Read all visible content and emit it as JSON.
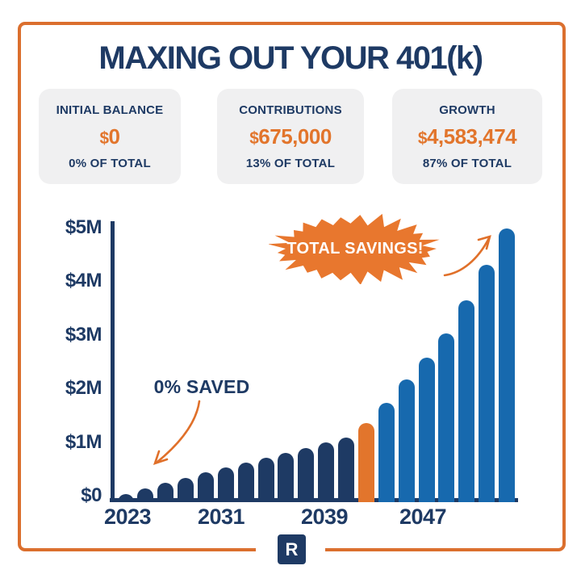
{
  "header": {
    "title": "MAXING OUT YOUR 401(k)"
  },
  "stats": [
    {
      "label": "INITIAL BALANCE",
      "amount": "$0",
      "share": "0% OF TOTAL"
    },
    {
      "label": "CONTRIBUTIONS",
      "amount": "$675,000",
      "share": "13% OF TOTAL"
    },
    {
      "label": "GROWTH",
      "amount": "$4,583,474",
      "share": "87% OF TOTAL"
    }
  ],
  "annotations": {
    "burst": "TOTAL SAVINGS!",
    "zero_saved": "0% SAVED"
  },
  "footer": {
    "logo_letter": "R"
  },
  "colors": {
    "navy": "#1E3A64",
    "orange": "#E2752C",
    "blue": "#1769AE",
    "box_bg": "#F0F0F1",
    "frame": "#DB6F2E",
    "burst_text": "#FFFFFF"
  },
  "chart_data": {
    "type": "bar",
    "title": "",
    "xlabel": "",
    "ylabel": "",
    "x_tick_labels": [
      "2023",
      "2031",
      "2039",
      "2047"
    ],
    "y_tick_labels": [
      "$0",
      "$1M",
      "$2M",
      "$3M",
      "$4M",
      "$5M"
    ],
    "y_tick_values_musd": [
      0,
      1,
      2,
      3,
      4,
      5
    ],
    "ylim_musd": [
      0,
      5.2
    ],
    "grid": false,
    "legend": false,
    "bar_values_musd": [
      0.15,
      0.25,
      0.35,
      0.45,
      0.55,
      0.63,
      0.72,
      0.81,
      0.91,
      1.0,
      1.09,
      1.18,
      1.45,
      1.82,
      2.25,
      2.65,
      3.1,
      3.7,
      4.35,
      5.02
    ],
    "highlight_bar_index": 12,
    "phase_colors": {
      "before_highlight": "navy",
      "highlight": "orange",
      "after_highlight": "blue"
    }
  }
}
